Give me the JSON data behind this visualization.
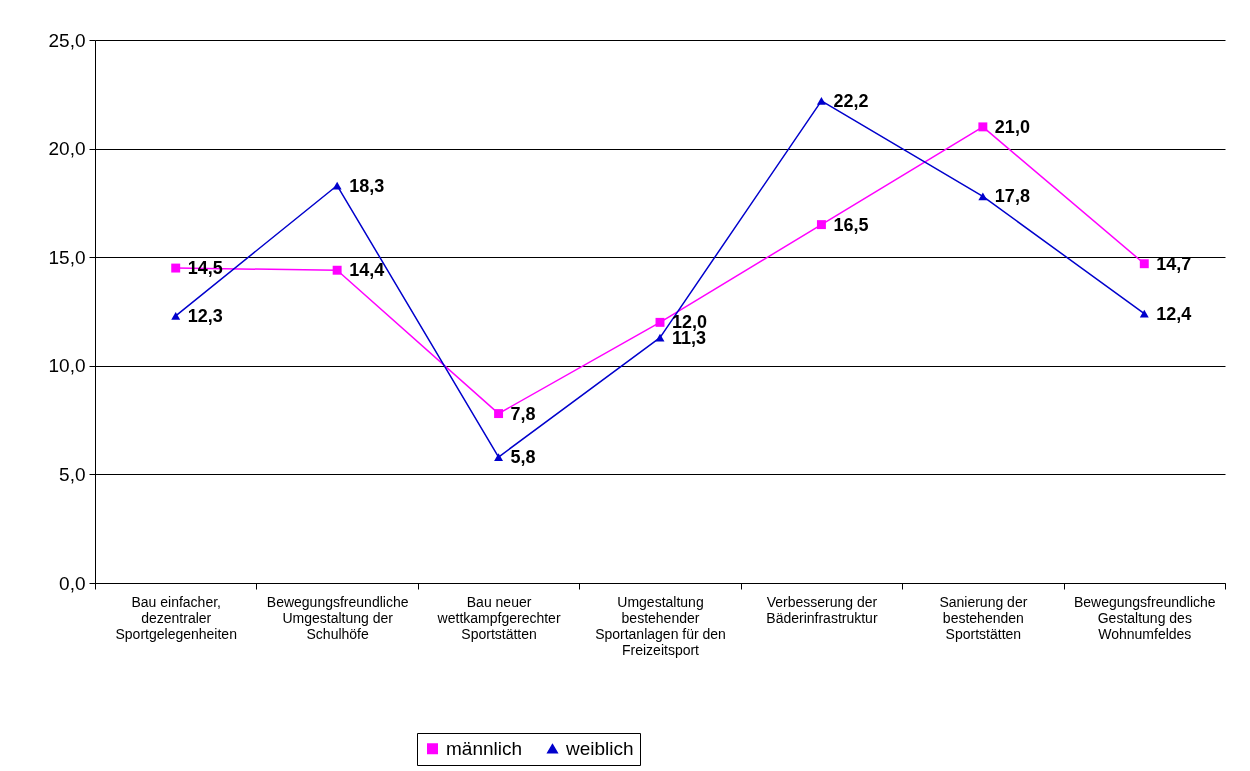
{
  "chart_data": {
    "type": "line",
    "categories": [
      "Bau einfacher,\ndezentraler\nSportgelegenheiten",
      "Bewegungsfreundliche\nUmgestaltung der\nSchulhöfe",
      "Bau neuer\nwettkampfgerechter\nSportstätten",
      "Umgestaltung\nbestehender\nSportanlagen für den\nFreizeitsport",
      "Verbesserung der\nBäderinfrastruktur",
      "Sanierung der\nbestehenden\nSportstätten",
      "Bewegungsfreundliche\nGestaltung des\nWohnumfeldes"
    ],
    "series": [
      {
        "name": "männlich",
        "color": "#ff00ff",
        "marker": "square",
        "values": [
          14.5,
          14.4,
          7.8,
          12.0,
          16.5,
          21.0,
          14.7
        ],
        "value_labels": [
          "14,5",
          "14,4",
          "7,8",
          "12,0",
          "16,5",
          "21,0",
          "14,7"
        ]
      },
      {
        "name": "weiblich",
        "color": "#0000cc",
        "marker": "triangle",
        "values": [
          12.3,
          18.3,
          5.8,
          11.3,
          22.2,
          17.8,
          12.4
        ],
        "value_labels": [
          "12,3",
          "18,3",
          "5,8",
          "11,3",
          "22,2",
          "17,8",
          "12,4"
        ]
      }
    ],
    "ylim": [
      0,
      25
    ],
    "yticks": [
      {
        "value": 0,
        "label": "0,0"
      },
      {
        "value": 5,
        "label": "5,0"
      },
      {
        "value": 10,
        "label": "10,0"
      },
      {
        "value": 15,
        "label": "15,0"
      },
      {
        "value": 20,
        "label": "20,0"
      },
      {
        "value": 25,
        "label": "25,0"
      }
    ],
    "grid": "y",
    "legend": "bottom",
    "line_style": "solid"
  }
}
